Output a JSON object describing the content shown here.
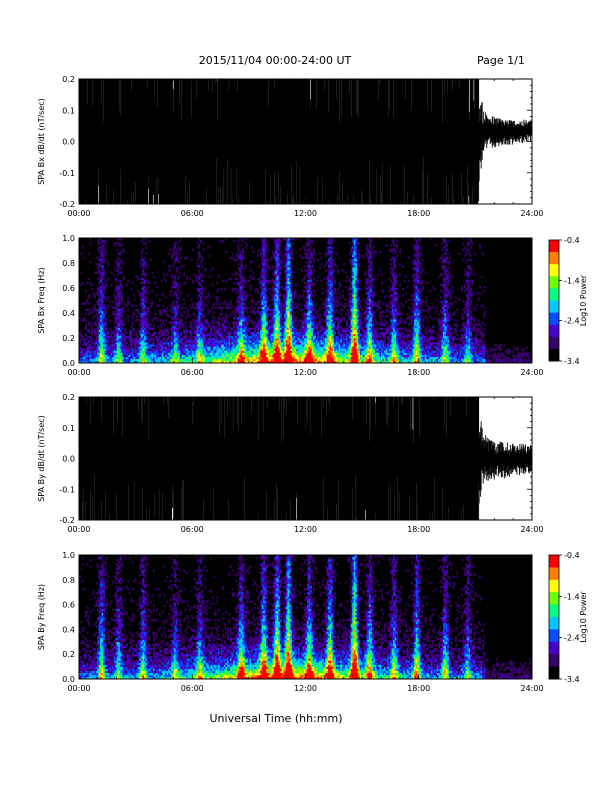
{
  "page": {
    "title": "2015/11/04  00:00-24:00 UT",
    "page_number": "Page 1/1",
    "xlabel": "Universal Time (hh:mm)"
  },
  "colors": {
    "waveform": "#000000",
    "background": "#ffffff",
    "colormap": [
      "#000000",
      "#3a006a",
      "#4b00c8",
      "#0050ff",
      "#00c8ff",
      "#00ff80",
      "#70ff00",
      "#ffff00",
      "#ff8000",
      "#ff0000"
    ]
  },
  "chart_data": [
    {
      "type": "line",
      "ylabel": "SPA Bx dB/dt (nT/sec)",
      "x_ticks": [
        "00:00",
        "06:00",
        "12:00",
        "18:00",
        "24:00"
      ],
      "xlim_hours": [
        0,
        24
      ],
      "ylim": [
        -0.2,
        0.2
      ],
      "y_ticks": [
        "0.2",
        "0.1",
        "0.0",
        "-0.1",
        "-0.2"
      ],
      "envelope": {
        "x_hours": [
          0,
          1,
          2,
          3,
          4,
          5,
          6,
          7,
          8,
          9,
          10,
          11,
          12,
          13,
          14,
          15,
          16,
          17,
          18,
          19,
          20,
          21,
          21.5,
          22,
          23,
          24
        ],
        "max": [
          0.2,
          0.2,
          0.2,
          0.2,
          0.2,
          0.2,
          0.2,
          0.2,
          0.2,
          0.2,
          0.2,
          0.2,
          0.2,
          0.2,
          0.2,
          0.2,
          0.2,
          0.2,
          0.2,
          0.2,
          0.2,
          0.2,
          0.1,
          0.08,
          0.07,
          0.07
        ],
        "min": [
          -0.2,
          -0.2,
          -0.2,
          -0.2,
          -0.2,
          -0.2,
          -0.2,
          -0.2,
          -0.2,
          -0.2,
          -0.2,
          -0.2,
          -0.2,
          -0.2,
          -0.2,
          -0.2,
          -0.2,
          -0.2,
          -0.2,
          -0.2,
          -0.2,
          -0.2,
          -0.03,
          -0.02,
          -0.01,
          0.0
        ]
      }
    },
    {
      "type": "heatmap",
      "ylabel": "SPA Bx Freq (Hz)",
      "x_ticks": [
        "00:00",
        "06:00",
        "12:00",
        "18:00",
        "24:00"
      ],
      "xlim_hours": [
        0,
        24
      ],
      "ylim": [
        0,
        1.0
      ],
      "y_ticks": [
        "1.0",
        "0.8",
        "0.6",
        "0.4",
        "0.2",
        "0.0"
      ],
      "colorbar": {
        "label": "Log10 Power",
        "range": [
          -3.4,
          -0.4
        ],
        "ticks": [
          "-0.4",
          "-1.4",
          "-2.4",
          "-3.4"
        ]
      },
      "activity_hours": [
        1.2,
        2.1,
        3.4,
        5.1,
        6.4,
        8.6,
        9.8,
        10.5,
        11.1,
        12.2,
        13.3,
        14.6,
        15.4,
        16.7,
        17.9,
        19.4,
        20.6
      ],
      "activity_strength": [
        0.5,
        0.35,
        0.4,
        0.3,
        0.35,
        0.45,
        0.6,
        0.7,
        0.8,
        0.55,
        0.6,
        0.85,
        0.5,
        0.45,
        0.55,
        0.45,
        0.35
      ]
    },
    {
      "type": "line",
      "ylabel": "SPA By dB/dt (nT/sec)",
      "x_ticks": [
        "00:00",
        "06:00",
        "12:00",
        "18:00",
        "24:00"
      ],
      "xlim_hours": [
        0,
        24
      ],
      "ylim": [
        -0.2,
        0.2
      ],
      "y_ticks": [
        "0.2",
        "0.1",
        "0.0",
        "-0.1",
        "-0.2"
      ],
      "envelope": {
        "x_hours": [
          0,
          1,
          2,
          3,
          4,
          5,
          6,
          7,
          8,
          9,
          10,
          11,
          12,
          13,
          14,
          15,
          16,
          17,
          18,
          19,
          20,
          21,
          21.5,
          22,
          23,
          24
        ],
        "max": [
          0.2,
          0.2,
          0.2,
          0.2,
          0.2,
          0.2,
          0.2,
          0.2,
          0.2,
          0.2,
          0.2,
          0.2,
          0.2,
          0.2,
          0.2,
          0.2,
          0.2,
          0.2,
          0.2,
          0.2,
          0.2,
          0.2,
          0.08,
          0.06,
          0.05,
          0.05
        ],
        "min": [
          -0.2,
          -0.2,
          -0.2,
          -0.2,
          -0.2,
          -0.2,
          -0.2,
          -0.2,
          -0.2,
          -0.2,
          -0.2,
          -0.2,
          -0.2,
          -0.2,
          -0.2,
          -0.2,
          -0.2,
          -0.2,
          -0.2,
          -0.2,
          -0.2,
          -0.2,
          -0.08,
          -0.07,
          -0.06,
          -0.05
        ]
      }
    },
    {
      "type": "heatmap",
      "ylabel": "SPA By Freq (Hz)",
      "x_ticks": [
        "00:00",
        "06:00",
        "12:00",
        "18:00",
        "24:00"
      ],
      "xlim_hours": [
        0,
        24
      ],
      "ylim": [
        0,
        1.0
      ],
      "y_ticks": [
        "1.0",
        "0.8",
        "0.6",
        "0.4",
        "0.2",
        "0.0"
      ],
      "colorbar": {
        "label": "Log10 Power",
        "range": [
          -3.4,
          -0.4
        ],
        "ticks": [
          "-0.4",
          "-1.4",
          "-2.4",
          "-3.4"
        ]
      },
      "activity_hours": [
        1.2,
        2.1,
        3.4,
        5.1,
        6.4,
        8.6,
        9.8,
        10.5,
        11.1,
        12.2,
        13.3,
        14.6,
        15.4,
        16.7,
        17.9,
        19.4,
        20.6
      ],
      "activity_strength": [
        0.55,
        0.4,
        0.45,
        0.35,
        0.4,
        0.55,
        0.65,
        0.75,
        0.8,
        0.6,
        0.65,
        0.9,
        0.55,
        0.5,
        0.6,
        0.5,
        0.4
      ]
    }
  ]
}
